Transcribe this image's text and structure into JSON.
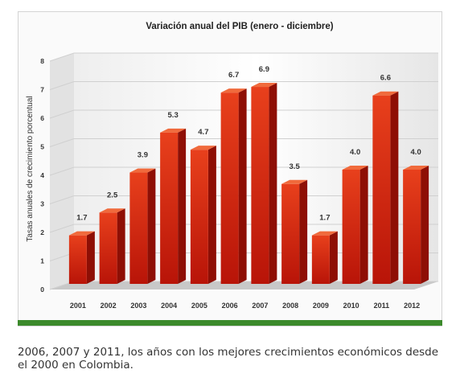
{
  "chart_data": {
    "type": "bar",
    "title": "Variación anual del PIB (enero - diciembre)",
    "ylabel": "Tasas anuales de crecimiento porcentual",
    "xlabel": "",
    "categories": [
      "2001",
      "2002",
      "2003",
      "2004",
      "2005",
      "2006",
      "2007",
      "2008",
      "2009",
      "2010",
      "2011",
      "2012"
    ],
    "values": [
      1.7,
      2.5,
      3.9,
      5.3,
      4.7,
      6.7,
      6.9,
      3.5,
      1.7,
      4.0,
      6.6,
      4.0
    ],
    "data_labels": [
      "1.7",
      "2.5",
      "3.9",
      "5.3",
      "4.7",
      "6.7",
      "6.9",
      "3.5",
      "1.7",
      "4.0",
      "6.6",
      "4.0"
    ],
    "ylim": [
      0,
      8
    ],
    "yticks": [
      "0",
      "1",
      "2",
      "3",
      "4",
      "5",
      "6",
      "7",
      "8"
    ],
    "grid": true,
    "bar_color": "#d42a10",
    "accent_color": "#3c8a2c"
  },
  "caption": "2006, 2007 y 2011, los años con los mejores crecimientos económicos desde el 2000 en Colombia."
}
